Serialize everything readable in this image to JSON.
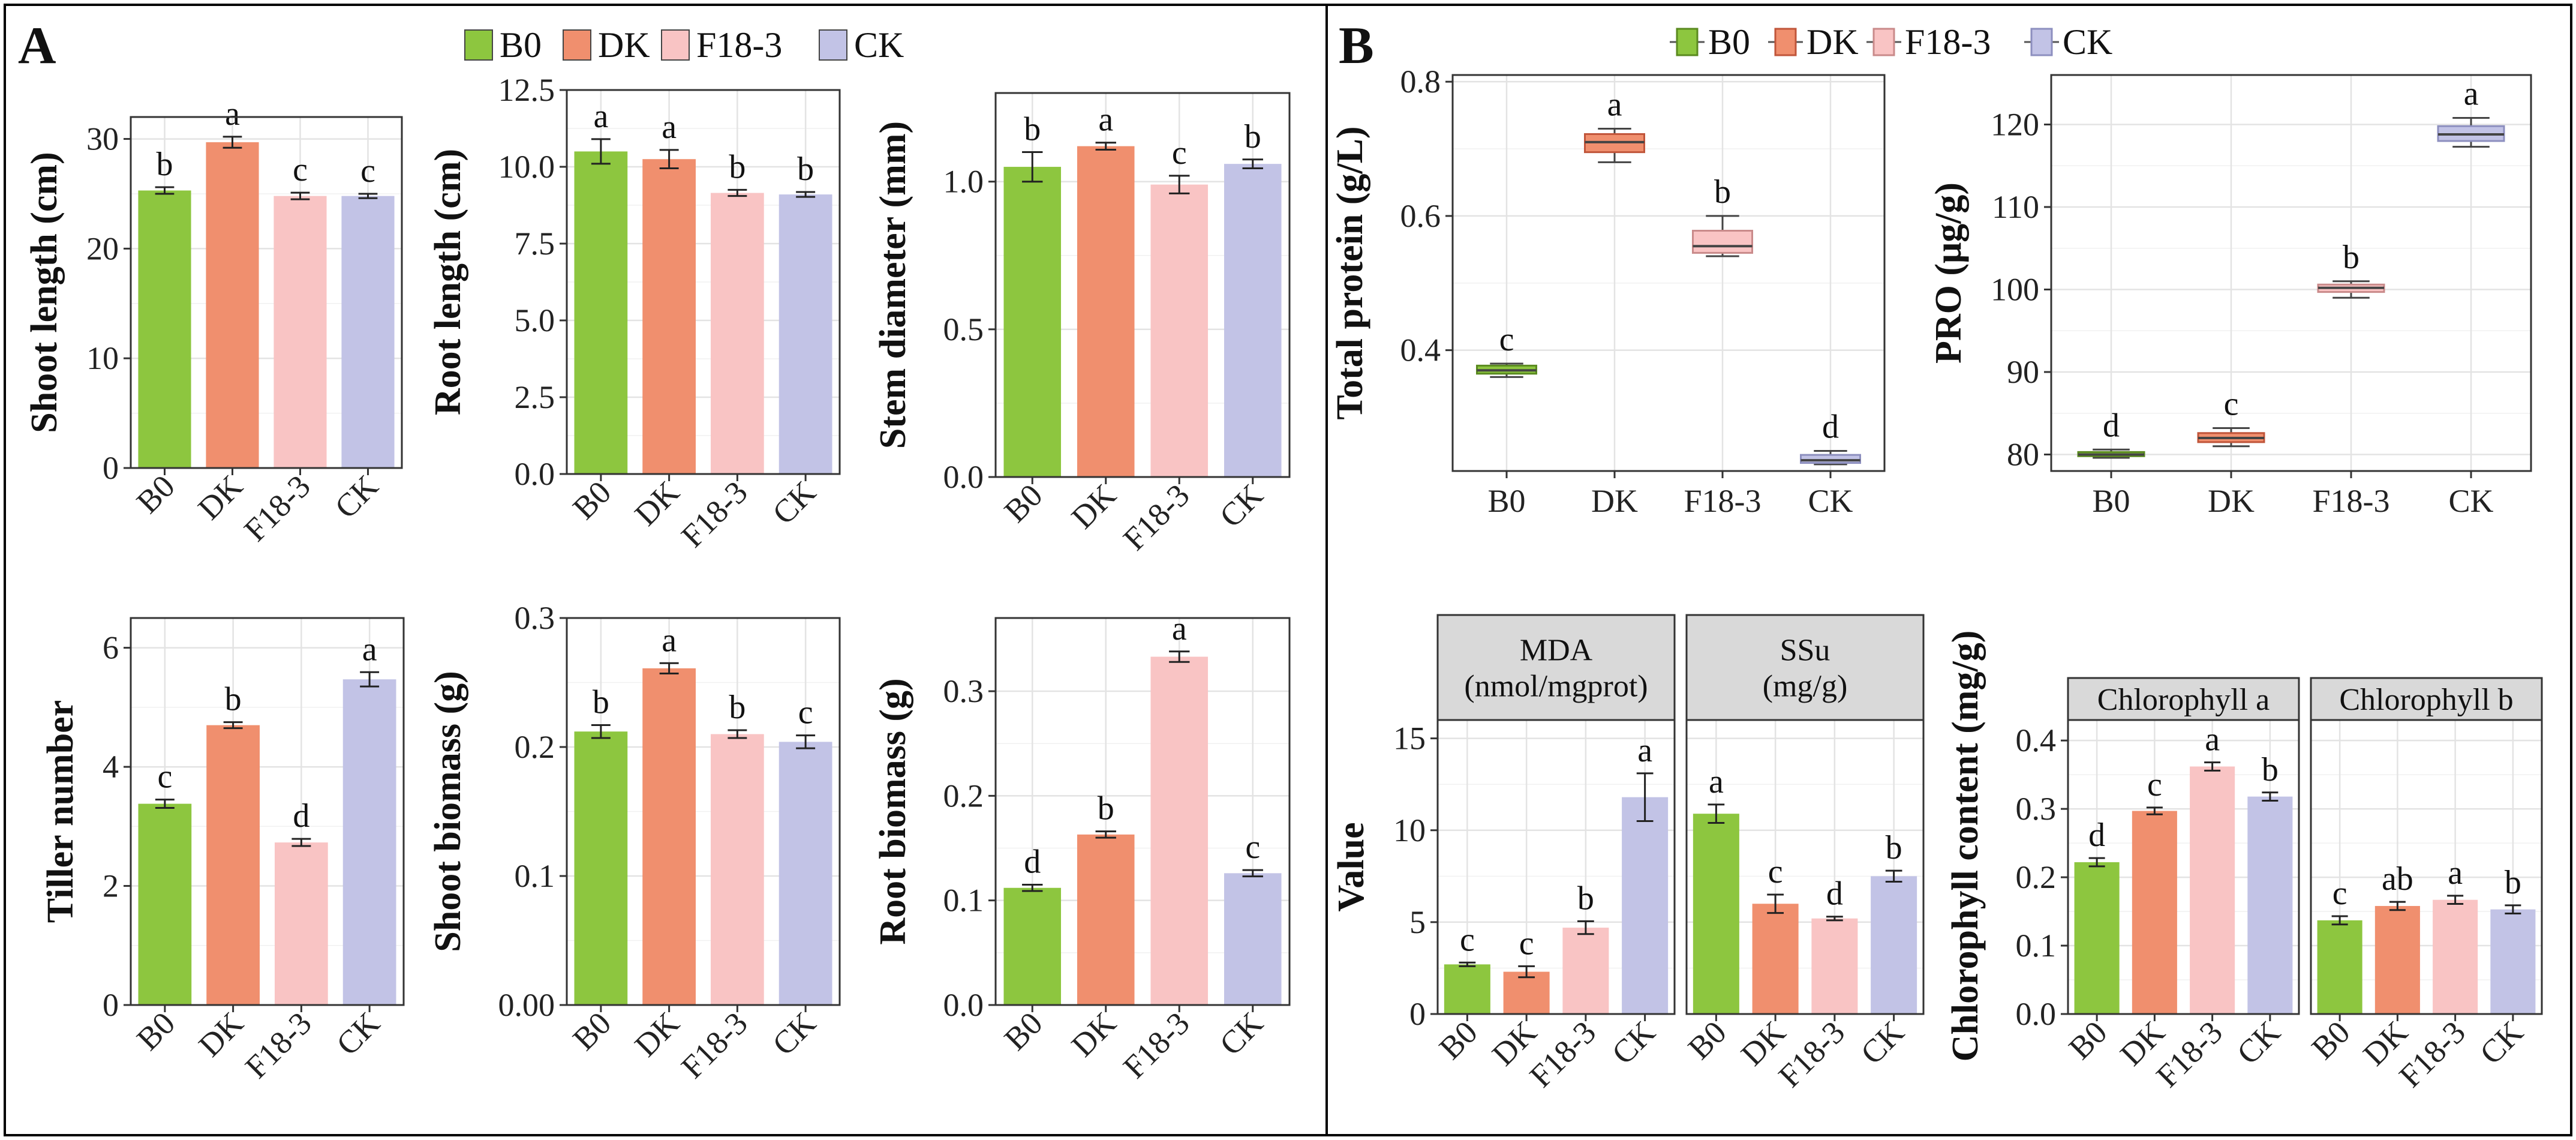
{
  "colors": {
    "B0": "#8dc63f",
    "DK": "#f08f6e",
    "F18-3": "#f9c4c4",
    "CK": "#c2c3e6"
  },
  "box_stroke": {
    "B0": "#5a8a1f",
    "DK": "#c0553a",
    "F18-3": "#c98a8a",
    "CK": "#8d8fbf"
  },
  "panel_A": {
    "letter": "A",
    "legend": [
      "B0",
      "DK",
      "F18-3",
      "CK"
    ]
  },
  "panel_B": {
    "letter": "B",
    "legend": [
      "B0",
      "DK",
      "F18-3",
      "CK"
    ]
  },
  "chart_data": [
    {
      "id": "shoot_length",
      "panel": "A",
      "type": "bar",
      "categories": [
        "B0",
        "DK",
        "F18-3",
        "CK"
      ],
      "values": [
        25.3,
        29.7,
        24.8,
        24.8
      ],
      "errors": [
        0.3,
        0.5,
        0.3,
        0.2
      ],
      "letters": [
        "b",
        "a",
        "c",
        "c"
      ],
      "ylabel": "Shoot length (cm)",
      "ylim": [
        0,
        32
      ],
      "yticks": [
        0,
        10,
        20,
        30
      ],
      "yticklabels": [
        "0",
        "10",
        "20",
        "30"
      ]
    },
    {
      "id": "root_length",
      "panel": "A",
      "type": "bar",
      "categories": [
        "B0",
        "DK",
        "F18-3",
        "CK"
      ],
      "values": [
        10.5,
        10.25,
        9.15,
        9.1
      ],
      "errors": [
        0.4,
        0.3,
        0.1,
        0.08
      ],
      "letters": [
        "a",
        "a",
        "b",
        "b"
      ],
      "ylabel": "Root length (cm)",
      "ylim": [
        0,
        12.5
      ],
      "yticks": [
        0,
        2.5,
        5,
        7.5,
        10,
        12.5
      ],
      "yticklabels": [
        "0.0",
        "2.5",
        "5.0",
        "7.5",
        "10.0",
        "12.5"
      ]
    },
    {
      "id": "stem_diameter",
      "panel": "A",
      "type": "bar",
      "categories": [
        "B0",
        "DK",
        "F18-3",
        "CK"
      ],
      "values": [
        1.05,
        1.12,
        0.99,
        1.06
      ],
      "errors": [
        0.05,
        0.012,
        0.03,
        0.015
      ],
      "letters": [
        "b",
        "a",
        "c",
        "b"
      ],
      "ylabel": "Stem diameter (mm)",
      "ylim": [
        0,
        1.3
      ],
      "yticks": [
        0,
        0.5,
        1.0
      ],
      "yticklabels": [
        "0.0",
        "0.5",
        "1.0"
      ]
    },
    {
      "id": "tiller_number",
      "panel": "A",
      "type": "bar",
      "categories": [
        "B0",
        "DK",
        "F18-3",
        "CK"
      ],
      "values": [
        3.38,
        4.7,
        2.73,
        5.47
      ],
      "errors": [
        0.07,
        0.05,
        0.06,
        0.12
      ],
      "letters": [
        "c",
        "b",
        "d",
        "a"
      ],
      "ylabel": "Tiller number",
      "ylim": [
        0,
        6.5
      ],
      "yticks": [
        0,
        2,
        4,
        6
      ],
      "yticklabels": [
        "0",
        "2",
        "4",
        "6"
      ]
    },
    {
      "id": "shoot_biomass",
      "panel": "A",
      "type": "bar",
      "categories": [
        "B0",
        "DK",
        "F18-3",
        "CK"
      ],
      "values": [
        0.212,
        0.261,
        0.21,
        0.204
      ],
      "errors": [
        0.005,
        0.004,
        0.003,
        0.005
      ],
      "letters": [
        "b",
        "a",
        "b",
        "c"
      ],
      "ylabel": "Shoot biomass (g)",
      "ylim": [
        0,
        0.3
      ],
      "yticks": [
        0,
        0.1,
        0.2,
        0.3
      ],
      "yticklabels": [
        "0.00",
        "0.1",
        "0.2",
        "0.3"
      ]
    },
    {
      "id": "root_biomass",
      "panel": "A",
      "type": "bar",
      "categories": [
        "B0",
        "DK",
        "F18-3",
        "CK"
      ],
      "values": [
        0.112,
        0.163,
        0.333,
        0.126
      ],
      "errors": [
        0.003,
        0.003,
        0.005,
        0.003
      ],
      "letters": [
        "d",
        "b",
        "a",
        "c"
      ],
      "ylabel": "Root biomass (g)",
      "ylim": [
        0,
        0.37
      ],
      "yticks": [
        0,
        0.1,
        0.2,
        0.3
      ],
      "yticklabels": [
        "0.0",
        "0.1",
        "0.2",
        "0.3"
      ]
    },
    {
      "id": "total_protein",
      "panel": "B",
      "type": "box",
      "categories": [
        "B0",
        "DK",
        "F18-3",
        "CK"
      ],
      "boxes": [
        {
          "min": 0.36,
          "q1": 0.365,
          "median": 0.37,
          "q3": 0.377,
          "max": 0.38
        },
        {
          "min": 0.68,
          "q1": 0.695,
          "median": 0.71,
          "q3": 0.722,
          "max": 0.73
        },
        {
          "min": 0.54,
          "q1": 0.545,
          "median": 0.555,
          "q3": 0.578,
          "max": 0.6
        },
        {
          "min": 0.23,
          "q1": 0.232,
          "median": 0.236,
          "q3": 0.244,
          "max": 0.25
        }
      ],
      "letters": [
        "c",
        "a",
        "b",
        "d"
      ],
      "ylabel": "Total protein (g/L)",
      "ylim": [
        0.22,
        0.81
      ],
      "yticks": [
        0.4,
        0.6,
        0.8
      ],
      "yticklabels": [
        "0.4",
        "0.6",
        "0.8"
      ]
    },
    {
      "id": "pro",
      "panel": "B",
      "type": "box",
      "categories": [
        "B0",
        "DK",
        "F18-3",
        "CK"
      ],
      "boxes": [
        {
          "min": 79.6,
          "q1": 79.8,
          "median": 80.0,
          "q3": 80.3,
          "max": 80.6
        },
        {
          "min": 81.0,
          "q1": 81.5,
          "median": 82.0,
          "q3": 82.6,
          "max": 83.2
        },
        {
          "min": 99.0,
          "q1": 99.7,
          "median": 100.2,
          "q3": 100.6,
          "max": 101.0
        },
        {
          "min": 117.3,
          "q1": 118.0,
          "median": 118.8,
          "q3": 119.8,
          "max": 120.8
        }
      ],
      "letters": [
        "d",
        "c",
        "b",
        "a"
      ],
      "ylabel": "PRO (μg/g)",
      "ylim": [
        78,
        126
      ],
      "yticks": [
        80,
        90,
        100,
        110,
        120
      ],
      "yticklabels": [
        "80",
        "90",
        "100",
        "110",
        "120"
      ]
    },
    {
      "id": "mda",
      "panel": "B",
      "type": "bar",
      "strip": [
        "MDA",
        "(nmol/mgprot)"
      ],
      "categories": [
        "B0",
        "DK",
        "F18-3",
        "CK"
      ],
      "values": [
        2.7,
        2.3,
        4.7,
        11.8
      ],
      "errors": [
        0.1,
        0.3,
        0.35,
        1.3
      ],
      "letters": [
        "c",
        "c",
        "b",
        "a"
      ],
      "ylabel": "Value",
      "ylim": [
        0,
        16
      ],
      "yticks": [
        0,
        5,
        10,
        15
      ],
      "yticklabels": [
        "0",
        "5",
        "10",
        "15"
      ]
    },
    {
      "id": "ssu",
      "panel": "B",
      "type": "bar",
      "strip": [
        "SSu",
        "(mg/g)"
      ],
      "categories": [
        "B0",
        "DK",
        "F18-3",
        "CK"
      ],
      "values": [
        10.9,
        6.0,
        5.2,
        7.5
      ],
      "errors": [
        0.5,
        0.5,
        0.1,
        0.3
      ],
      "letters": [
        "a",
        "c",
        "d",
        "b"
      ],
      "ylim": [
        0,
        16
      ]
    },
    {
      "id": "chlorophyll_a",
      "panel": "B",
      "type": "bar",
      "strip": [
        "Chlorophyll a"
      ],
      "categories": [
        "B0",
        "DK",
        "F18-3",
        "CK"
      ],
      "values": [
        0.222,
        0.297,
        0.362,
        0.318
      ],
      "errors": [
        0.006,
        0.005,
        0.006,
        0.006
      ],
      "letters": [
        "d",
        "c",
        "a",
        "b"
      ],
      "ylabel": "Chlorophyll content (mg/g)",
      "ylim": [
        0,
        0.43
      ],
      "yticks": [
        0,
        0.1,
        0.2,
        0.3,
        0.4
      ],
      "yticklabels": [
        "0.0",
        "0.1",
        "0.2",
        "0.3",
        "0.4"
      ]
    },
    {
      "id": "chlorophyll_b",
      "panel": "B",
      "type": "bar",
      "strip": [
        "Chlorophyll b"
      ],
      "categories": [
        "B0",
        "DK",
        "F18-3",
        "CK"
      ],
      "values": [
        0.137,
        0.158,
        0.167,
        0.153
      ],
      "errors": [
        0.006,
        0.006,
        0.006,
        0.006
      ],
      "letters": [
        "c",
        "ab",
        "a",
        "b"
      ],
      "ylim": [
        0,
        0.43
      ]
    }
  ]
}
